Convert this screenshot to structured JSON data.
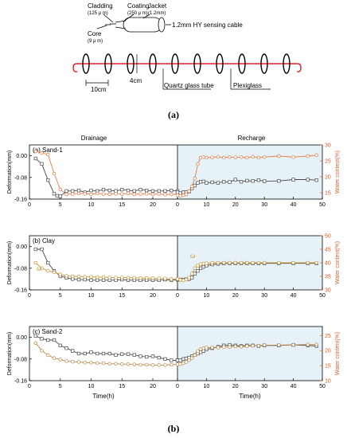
{
  "figure": {
    "caption_a": "(a)",
    "caption_b": "(b)"
  },
  "schematic": {
    "labels": {
      "cladding": "Cladding",
      "cladding_size": "(125 μ m)",
      "coating": "Coating",
      "coating_size": "(250 μ m)",
      "jacket": "Jacket",
      "jacket_size": "(1.2mm)",
      "core": "Core",
      "core_size": "(9 μ m)",
      "cable": "1.2mm HY sensing cable",
      "spacing_10": "10cm",
      "diameter_4": "4cm",
      "quartz": "Quartz glass tube",
      "plexiglass": "Plexiglass"
    },
    "ring_count": 10,
    "colors": {
      "cable": "#e0202a",
      "ring": "#000000"
    }
  },
  "colors": {
    "deformation": "#4a4a4a",
    "water_sand1": "#e07a4a",
    "water_clay": "#c8953a",
    "water_sand2": "#b8864a",
    "recharge_bg": "#e6f2f8",
    "right_axis": "#d06030"
  },
  "chart_data": [
    {
      "type": "line",
      "panel_label": "(a) Sand-1",
      "section_titles": [
        "Drainage",
        "Recharge"
      ],
      "ylabel": "Deformation(mm)",
      "ylabel_right": "Water content(%)",
      "xlabel": "",
      "left_yticks": [
        "0.00",
        "-0.08",
        "-0.16"
      ],
      "right_yticks": [
        "15",
        "20",
        "25",
        "30"
      ],
      "drainage": {
        "xlim": [
          0,
          24
        ],
        "xticks": [
          0,
          5,
          10,
          15,
          20
        ],
        "series": [
          {
            "name": "Deformation",
            "axis": "left",
            "x": [
              1,
              2,
              3,
              4,
              4.5,
              5,
              6,
              7,
              8,
              9,
              10,
              11,
              12,
              13,
              14,
              15,
              16,
              17,
              18,
              19,
              20,
              21,
              22,
              23,
              24
            ],
            "y": [
              -0.01,
              -0.03,
              -0.09,
              -0.14,
              -0.148,
              -0.15,
              -0.13,
              -0.13,
              -0.128,
              -0.135,
              -0.128,
              -0.13,
              -0.125,
              -0.128,
              -0.13,
              -0.125,
              -0.128,
              -0.13,
              -0.125,
              -0.128,
              -0.13,
              -0.13,
              -0.13,
              -0.128,
              -0.13
            ]
          },
          {
            "name": "Water content",
            "axis": "right",
            "x": [
              1,
              2,
              3,
              4,
              5,
              6,
              7,
              8,
              9,
              10,
              11,
              12,
              13,
              14,
              15,
              16,
              17,
              18,
              19,
              20,
              21,
              22,
              23,
              24
            ],
            "y": [
              28,
              27.5,
              27,
              21,
              16,
              14.5,
              14.6,
              14.8,
              14.7,
              14.5,
              14.8,
              14.6,
              14.5,
              14.7,
              14.6,
              14.8,
              14.5,
              14.6,
              14.7,
              14.5,
              14.6,
              14.4,
              14.5,
              14.5
            ]
          }
        ]
      },
      "recharge": {
        "xlim": [
          0,
          50
        ],
        "xticks": [
          0,
          10,
          20,
          30,
          40,
          50
        ],
        "series": [
          {
            "name": "Deformation",
            "axis": "left",
            "x": [
              0,
              1,
              2,
              3,
              4,
              5,
              6,
              7,
              8,
              9,
              10,
              12,
              14,
              16,
              18,
              20,
              22,
              24,
              26,
              28,
              30,
              35,
              40,
              45,
              48
            ],
            "y": [
              -0.135,
              -0.138,
              -0.135,
              -0.134,
              -0.132,
              -0.12,
              -0.11,
              -0.1,
              -0.096,
              -0.095,
              -0.1,
              -0.098,
              -0.1,
              -0.096,
              -0.097,
              -0.088,
              -0.096,
              -0.092,
              -0.093,
              -0.09,
              -0.094,
              -0.093,
              -0.088,
              -0.088,
              -0.09
            ]
          },
          {
            "name": "Water content",
            "axis": "right",
            "x": [
              0,
              1,
              2,
              3,
              4,
              5,
              6,
              7,
              8,
              9,
              10,
              12,
              14,
              16,
              18,
              20,
              22,
              24,
              26,
              28,
              30,
              35,
              40,
              45,
              48
            ],
            "y": [
              14.2,
              14,
              14.2,
              14.5,
              15.5,
              17,
              19.5,
              24,
              26,
              26.2,
              26,
              26.1,
              26.3,
              26,
              26.2,
              26.1,
              26.2,
              26,
              26.3,
              26,
              26.2,
              26.5,
              26.2,
              26.5,
              26.8
            ]
          }
        ]
      },
      "ylim_left": [
        -0.16,
        0.04
      ],
      "ylim_right": [
        13,
        30
      ]
    },
    {
      "type": "line",
      "panel_label": "(b) Clay",
      "ylabel": "Deformation(mm)",
      "ylabel_right": "Water content(%)",
      "xlabel": "",
      "left_yticks": [
        "0.00",
        "-0.08",
        "-0.16"
      ],
      "right_yticks": [
        "30",
        "35",
        "40",
        "45",
        "50"
      ],
      "annotations": [
        "ω",
        "ω"
      ],
      "drainage": {
        "xlim": [
          0,
          24
        ],
        "xticks": [
          0,
          5,
          10,
          15,
          20
        ],
        "series": [
          {
            "name": "Deformation",
            "axis": "left",
            "x": [
              1,
              2,
              3,
              4,
              5,
              6,
              7,
              8,
              9,
              10,
              11,
              12,
              13,
              14,
              15,
              16,
              17,
              18,
              19,
              20,
              21,
              22,
              23,
              24
            ],
            "y": [
              -0.01,
              -0.01,
              -0.06,
              -0.09,
              -0.11,
              -0.115,
              -0.12,
              -0.122,
              -0.122,
              -0.124,
              -0.124,
              -0.124,
              -0.124,
              -0.124,
              -0.122,
              -0.124,
              -0.124,
              -0.124,
              -0.124,
              -0.124,
              -0.124,
              -0.122,
              -0.124,
              -0.122
            ]
          },
          {
            "name": "Water content",
            "axis": "right",
            "x": [
              1,
              2,
              3,
              4,
              5,
              6,
              7,
              8,
              9,
              10,
              11,
              12,
              13,
              14,
              15,
              16,
              17,
              18,
              19,
              20,
              21,
              22,
              23,
              24
            ],
            "y": [
              40,
              38,
              37,
              36.5,
              35.7,
              35.2,
              35,
              35,
              34.8,
              34.8,
              34.7,
              34.7,
              34.6,
              34.5,
              34.6,
              34.5,
              34.5,
              34.3,
              34.4,
              34.3,
              34.2,
              34.2,
              34,
              34
            ]
          }
        ]
      },
      "recharge": {
        "xlim": [
          0,
          50
        ],
        "xticks": [
          0,
          10,
          20,
          30,
          40,
          50
        ],
        "series": [
          {
            "name": "Deformation",
            "axis": "left",
            "x": [
              0,
              1,
              2,
              3,
              4,
              5,
              6,
              7,
              8,
              9,
              10,
              12,
              14,
              16,
              18,
              20,
              22,
              24,
              26,
              28,
              30,
              35,
              40,
              45,
              48
            ],
            "y": [
              -0.122,
              -0.122,
              -0.122,
              -0.121,
              -0.12,
              -0.115,
              -0.1,
              -0.09,
              -0.08,
              -0.075,
              -0.07,
              -0.066,
              -0.064,
              -0.062,
              -0.062,
              -0.062,
              -0.062,
              -0.062,
              -0.062,
              -0.062,
              -0.062,
              -0.062,
              -0.062,
              -0.062,
              -0.062
            ]
          },
          {
            "name": "Water content",
            "axis": "right",
            "x": [
              0,
              1,
              2,
              3,
              4,
              5,
              6,
              7,
              8,
              9,
              10,
              12,
              14,
              16,
              18,
              20,
              22,
              24,
              26,
              28,
              30,
              35,
              40,
              45,
              48
            ],
            "y": [
              34,
              33.7,
              33.5,
              33.8,
              34.5,
              36,
              38,
              39,
              39.5,
              39.7,
              39.8,
              40,
              40,
              40,
              40,
              40,
              40,
              40,
              40,
              40,
              40,
              40,
              40,
              40,
              40
            ]
          }
        ]
      },
      "ylim_left": [
        -0.16,
        0.04
      ],
      "ylim_right": [
        30,
        50
      ]
    },
    {
      "type": "line",
      "panel_label": "(c) Sand-2",
      "ylabel": "Deformation(mm)",
      "ylabel_right": "Water content(%)",
      "xlabel": "Time(h)",
      "left_yticks": [
        "0.00",
        "-0.08",
        "-0.16"
      ],
      "right_yticks": [
        "10",
        "15",
        "20",
        "25"
      ],
      "drainage": {
        "xlim": [
          0,
          24
        ],
        "xticks": [
          0,
          5,
          10,
          15,
          20
        ],
        "series": [
          {
            "name": "Deformation",
            "axis": "left",
            "x": [
              1,
              2,
              3,
              4,
              5,
              6,
              7,
              8,
              9,
              10,
              11,
              12,
              13,
              14,
              15,
              16,
              17,
              18,
              19,
              20,
              21,
              22,
              23,
              24
            ],
            "y": [
              0.005,
              -0.005,
              -0.01,
              -0.01,
              -0.03,
              -0.04,
              -0.05,
              -0.06,
              -0.06,
              -0.055,
              -0.06,
              -0.06,
              -0.06,
              -0.065,
              -0.062,
              -0.062,
              -0.065,
              -0.07,
              -0.072,
              -0.07,
              -0.075,
              -0.08,
              -0.085,
              -0.085
            ]
          },
          {
            "name": "Water content",
            "axis": "right",
            "x": [
              1,
              2,
              3,
              4,
              5,
              6,
              7,
              8,
              9,
              10,
              11,
              12,
              13,
              14,
              15,
              16,
              17,
              18,
              19,
              20,
              21,
              22,
              23,
              24
            ],
            "y": [
              22.5,
              20,
              18.5,
              17.5,
              17,
              16.5,
              16.3,
              16.2,
              16,
              16,
              15.8,
              15.8,
              15.6,
              15.6,
              15.5,
              15.5,
              15.4,
              15.3,
              15.3,
              15.2,
              15.2,
              15.2,
              15.3,
              15.4
            ]
          }
        ]
      },
      "recharge": {
        "xlim": [
          0,
          50
        ],
        "xticks": [
          0,
          10,
          20,
          30,
          40,
          50
        ],
        "series": [
          {
            "name": "Deformation",
            "axis": "left",
            "x": [
              0,
              1,
              2,
              3,
              4,
              5,
              6,
              7,
              8,
              9,
              10,
              12,
              14,
              16,
              18,
              20,
              22,
              24,
              26,
              28,
              30,
              35,
              40,
              45,
              48
            ],
            "y": [
              -0.085,
              -0.085,
              -0.08,
              -0.078,
              -0.075,
              -0.07,
              -0.065,
              -0.06,
              -0.055,
              -0.05,
              -0.045,
              -0.04,
              -0.035,
              -0.03,
              -0.028,
              -0.03,
              -0.032,
              -0.03,
              -0.03,
              -0.032,
              -0.03,
              -0.03,
              -0.028,
              -0.03,
              -0.032
            ]
          },
          {
            "name": "Water content",
            "axis": "right",
            "x": [
              0,
              1,
              2,
              3,
              4,
              5,
              6,
              7,
              8,
              9,
              10,
              12,
              14,
              16,
              18,
              20,
              22,
              24,
              26,
              28,
              30,
              35,
              40,
              45,
              48
            ],
            "y": [
              15.4,
              15.5,
              15.8,
              16.2,
              16.8,
              17.5,
              18.5,
              19.8,
              20.5,
              20.8,
              21,
              21,
              21,
              21.2,
              21.2,
              21.4,
              21.3,
              21.5,
              21.6,
              21.6,
              21.8,
              21.8,
              21.9,
              22,
              22
            ]
          }
        ]
      },
      "ylim_left": [
        -0.16,
        0.04
      ],
      "ylim_right": [
        10,
        28
      ]
    }
  ]
}
